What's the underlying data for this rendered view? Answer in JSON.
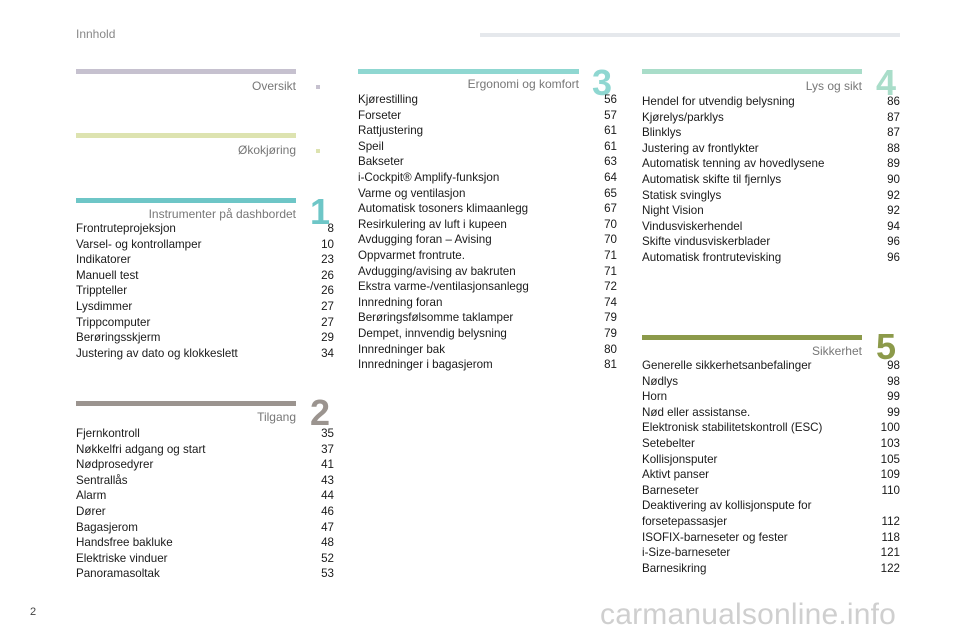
{
  "header": {
    "title": "Innhold"
  },
  "page_number": "2",
  "watermark": "carmanualsonline.info",
  "colors": {
    "oversikt": "#c6c1cf",
    "okokjoring": "#dde3b0",
    "instrumenter": "#6ec6c7",
    "tilgang": "#9b948f",
    "ergonomi": "#8fd7d1",
    "lys": "#a9ddc9",
    "sikkerhet": "#8c9a4a"
  },
  "sections": {
    "oversikt": {
      "title": "Oversikt"
    },
    "okokjoring": {
      "title": "Økokjøring"
    },
    "instrumenter": {
      "title": "Instrumenter på dashbordet",
      "number": "1",
      "items": [
        {
          "label": "Frontruteprojeksjon",
          "page": "8"
        },
        {
          "label": "Varsel- og kontrollamper",
          "page": "10"
        },
        {
          "label": "Indikatorer",
          "page": "23"
        },
        {
          "label": "Manuell test",
          "page": "26"
        },
        {
          "label": "Trippteller",
          "page": "26"
        },
        {
          "label": "Lysdimmer",
          "page": "27"
        },
        {
          "label": "Trippcomputer",
          "page": "27"
        },
        {
          "label": "Berøringsskjerm",
          "page": "29"
        },
        {
          "label": "Justering av dato og klokkeslett",
          "page": "34"
        }
      ]
    },
    "tilgang": {
      "title": "Tilgang",
      "number": "2",
      "items": [
        {
          "label": "Fjernkontroll",
          "page": "35"
        },
        {
          "label": "Nøkkelfri adgang og start",
          "page": "37"
        },
        {
          "label": "Nødprosedyrer",
          "page": "41"
        },
        {
          "label": "Sentrallås",
          "page": "43"
        },
        {
          "label": "Alarm",
          "page": "44"
        },
        {
          "label": "Dører",
          "page": "46"
        },
        {
          "label": "Bagasjerom",
          "page": "47"
        },
        {
          "label": "Handsfree bakluke",
          "page": "48"
        },
        {
          "label": "Elektriske vinduer",
          "page": "52"
        },
        {
          "label": "Panoramasoltak",
          "page": "53"
        }
      ]
    },
    "ergonomi": {
      "title": "Ergonomi og komfort",
      "number": "3",
      "items": [
        {
          "label": "Kjørestilling",
          "page": "56"
        },
        {
          "label": "Forseter",
          "page": "57"
        },
        {
          "label": "Rattjustering",
          "page": "61"
        },
        {
          "label": "Speil",
          "page": "61"
        },
        {
          "label": "Bakseter",
          "page": "63"
        },
        {
          "label": "i-Cockpit® Amplify-funksjon",
          "page": "64"
        },
        {
          "label": "Varme og ventilasjon",
          "page": "65"
        },
        {
          "label": "Automatisk tosoners klimaanlegg",
          "page": "67"
        },
        {
          "label": "Resirkulering av luft i kupeen",
          "page": "70"
        },
        {
          "label": "Avdugging foran – Avising",
          "page": "70"
        },
        {
          "label": "Oppvarmet frontrute.",
          "page": "71"
        },
        {
          "label": "Avdugging/avising av bakruten",
          "page": "71"
        },
        {
          "label": "Ekstra varme-/ventilasjonsanlegg",
          "page": "72"
        },
        {
          "label": "Innredning foran",
          "page": "74"
        },
        {
          "label": "Berøringsfølsomme taklamper",
          "page": "79"
        },
        {
          "label": "Dempet, innvendig belysning",
          "page": "79"
        },
        {
          "label": "Innredninger bak",
          "page": "80"
        },
        {
          "label": "Innredninger i bagasjerom",
          "page": "81"
        }
      ]
    },
    "lys": {
      "title": "Lys og sikt",
      "number": "4",
      "items": [
        {
          "label": "Hendel for utvendig belysning",
          "page": "86"
        },
        {
          "label": "Kjørelys/parklys",
          "page": "87"
        },
        {
          "label": "Blinklys",
          "page": "87"
        },
        {
          "label": "Justering av frontlykter",
          "page": "88"
        },
        {
          "label": "Automatisk tenning av hovedlysene",
          "page": "89"
        },
        {
          "label": "Automatisk skifte til fjernlys",
          "page": "90"
        },
        {
          "label": "Statisk svinglys",
          "page": "92"
        },
        {
          "label": "Night Vision",
          "page": "92"
        },
        {
          "label": "Vindusviskerhendel",
          "page": "94"
        },
        {
          "label": "Skifte vindusviskerblader",
          "page": "96"
        },
        {
          "label": "Automatisk frontrutevisking",
          "page": "96"
        }
      ]
    },
    "sikkerhet": {
      "title": "Sikkerhet",
      "number": "5",
      "items": [
        {
          "label": "Generelle sikkerhetsanbefalinger",
          "page": "98"
        },
        {
          "label": "Nødlys",
          "page": "98"
        },
        {
          "label": "Horn",
          "page": "99"
        },
        {
          "label": "Nød eller assistanse.",
          "page": "99"
        },
        {
          "label": "Elektronisk stabilitetskontroll (ESC)",
          "page": "100"
        },
        {
          "label": "Setebelter",
          "page": "103"
        },
        {
          "label": "Kollisjonsputer",
          "page": "105"
        },
        {
          "label": "Aktivt panser",
          "page": "109"
        },
        {
          "label": "Barneseter",
          "page": "110"
        },
        {
          "label": "Deaktivering av kollisjonspute for forsetepassasjer",
          "page": "112"
        },
        {
          "label": "ISOFIX-barneseter og fester",
          "page": "118"
        },
        {
          "label": "i-Size-barneseter",
          "page": "121"
        },
        {
          "label": "Barnesikring",
          "page": "122"
        }
      ]
    }
  }
}
